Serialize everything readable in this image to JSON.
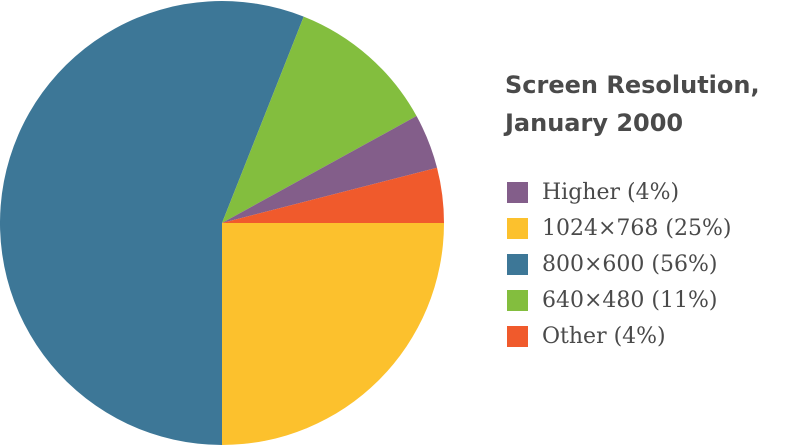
{
  "chart_data": {
    "type": "pie",
    "title_lines": [
      "Screen Resolution,",
      "January 2000"
    ],
    "slices": [
      {
        "label": "Higher (4%)",
        "name": "Higher",
        "value": 4,
        "color": "#835e8a"
      },
      {
        "label": "1024×768 (25%)",
        "name": "1024×768",
        "value": 25,
        "color": "#fcc12d"
      },
      {
        "label": "800×600 (56%)",
        "name": "800×600",
        "value": 56,
        "color": "#3d7797"
      },
      {
        "label": "640×480 (11%)",
        "name": "640×480",
        "value": 11,
        "color": "#83be3e"
      },
      {
        "label": "Other (4%)",
        "name": "Other",
        "value": 4,
        "color": "#f05a2c"
      }
    ],
    "legend_position": "right"
  }
}
